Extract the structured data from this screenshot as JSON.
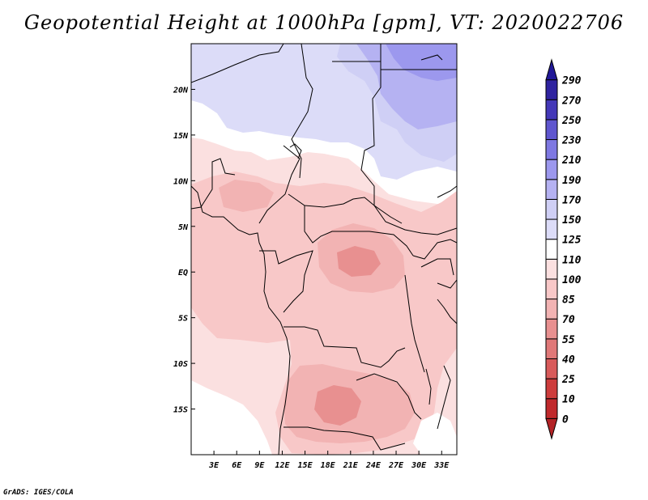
{
  "title": "Geopotential Height at 1000hPa [gpm], VT: 2020022706",
  "credit": "GrADS: IGES/COLA",
  "map": {
    "lon_ticks": [
      "3E",
      "6E",
      "9E",
      "12E",
      "15E",
      "18E",
      "21E",
      "24E",
      "27E",
      "30E",
      "33E"
    ],
    "lat_ticks": [
      "20N",
      "15N",
      "10N",
      "5N",
      "EQ",
      "5S",
      "10S",
      "15S"
    ]
  },
  "colorbar": {
    "levels": [
      "0",
      "10",
      "25",
      "40",
      "55",
      "70",
      "85",
      "100",
      "110",
      "125",
      "150",
      "170",
      "190",
      "210",
      "230",
      "250",
      "270",
      "290"
    ],
    "colors": [
      "#b32326",
      "#c0292c",
      "#cd3c3c",
      "#d85a5a",
      "#e07878",
      "#e89090",
      "#f2b3b3",
      "#f8c8c8",
      "#fbe0e0",
      "#ffffff",
      "#dcdcf8",
      "#cfcff5",
      "#b5b2f2",
      "#9c98ee",
      "#7e78e2",
      "#5f56cf",
      "#4438b8",
      "#2f23a0",
      "#211897"
    ]
  },
  "chart_data": {
    "type": "heatmap",
    "title": "Geopotential Height at 1000hPa [gpm], VT: 2020022706",
    "variable": "Geopotential Height at 1000hPa",
    "units": "gpm",
    "valid_time": "2020022706",
    "x_ticks": [
      "3E",
      "6E",
      "9E",
      "12E",
      "15E",
      "18E",
      "21E",
      "24E",
      "27E",
      "30E",
      "33E"
    ],
    "y_ticks": [
      "20N",
      "15N",
      "10N",
      "5N",
      "EQ",
      "5S",
      "10S",
      "15S"
    ],
    "contour_levels": [
      0,
      10,
      25,
      40,
      55,
      70,
      85,
      100,
      110,
      125,
      150,
      170,
      190,
      210,
      230,
      250,
      270,
      290
    ],
    "xlim": [
      0,
      35
    ],
    "ylim": [
      -20,
      25
    ]
  }
}
